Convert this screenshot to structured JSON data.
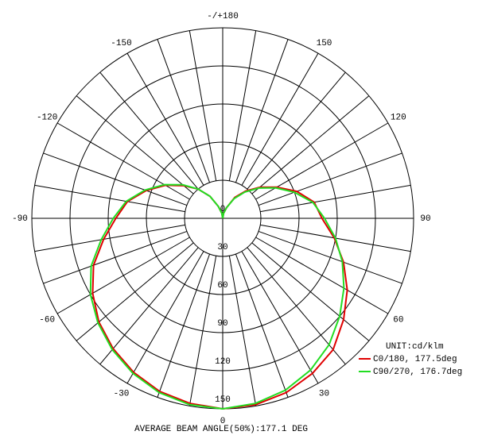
{
  "chart_data": {
    "type": "polar",
    "footer": "AVERAGE BEAM ANGLE(50%):177.1 DEG",
    "unit_label": "UNIT:cd/klm",
    "theta": [
      -180,
      -170,
      -160,
      -150,
      -140,
      -130,
      -120,
      -110,
      -100,
      -90,
      -80,
      -70,
      -60,
      -50,
      -40,
      -30,
      -20,
      -10,
      0,
      10,
      20,
      30,
      40,
      50,
      60,
      70,
      80,
      90,
      100,
      110,
      120,
      130,
      140,
      150,
      160,
      170,
      180
    ],
    "series": [
      {
        "name": "C0/180, 177.5deg",
        "color": "#e00000",
        "values": [
          0,
          4,
          10,
          20,
          30,
          40,
          52,
          64,
          76,
          84,
          95,
          108,
          118,
          127,
          134,
          140,
          145,
          148,
          150,
          149,
          146,
          141,
          135,
          124,
          113,
          101,
          89,
          78,
          73,
          62,
          49,
          38,
          28,
          19,
          9,
          4,
          0
        ]
      },
      {
        "name": "C90/270, 176.7deg",
        "color": "#22dd22",
        "values": [
          0,
          4,
          10,
          20,
          30,
          41,
          53,
          65,
          77,
          86,
          97,
          110,
          120,
          128,
          135,
          141,
          146,
          149,
          150,
          148,
          144,
          138,
          130,
          120,
          110,
          100,
          90,
          80,
          72,
          60,
          48,
          37,
          27,
          18,
          9,
          4,
          0
        ]
      }
    ],
    "rlim": [
      0,
      150
    ],
    "rticks": [
      0,
      30,
      60,
      90,
      120,
      150
    ],
    "thetaticks": [
      {
        "value": 180,
        "label": "-/+180"
      },
      150,
      120,
      90,
      60,
      30,
      0,
      -30,
      -60,
      -90,
      -120,
      -150
    ],
    "legend": "bottom-right"
  }
}
